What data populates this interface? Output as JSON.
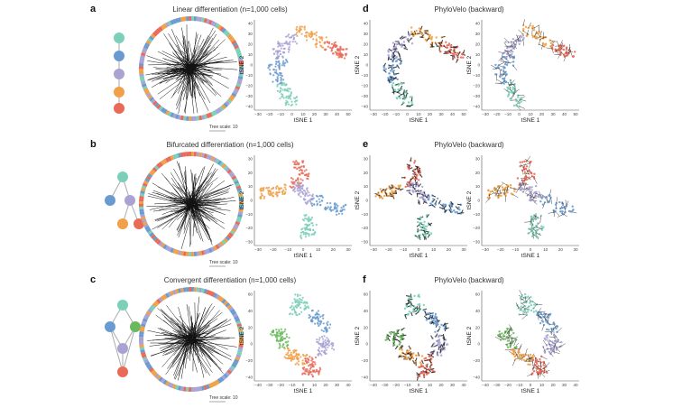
{
  "colors": {
    "teal": "#7ccfb8",
    "blue": "#6a9bd0",
    "lavender": "#a9a3d4",
    "orange": "#f0a048",
    "red": "#e86a58",
    "green": "#6bb85f",
    "arrow": "#1a1a1a",
    "ring": [
      "#7ccfb8",
      "#6a9bd0",
      "#a9a3d4",
      "#f0a048",
      "#e86a58"
    ]
  },
  "rows": [
    {
      "key": "linear",
      "title": "Linear differentiation (n=1,000 cells)",
      "letters": [
        "a",
        "d"
      ],
      "velo_title": "PhyloVelo (backward)",
      "tree_scale": "Tree scale: 10",
      "axis": {
        "xlabel": "tSNE 1",
        "ylabel": "tSNE 2"
      },
      "xticks": [
        "−30",
        "−20",
        "−10",
        "0",
        "10",
        "20",
        "30",
        "40",
        "50"
      ],
      "yticks": [
        "40",
        "30",
        "20",
        "10",
        "0",
        "−10",
        "−20",
        "−30",
        "−40"
      ],
      "lineage": {
        "nodes": [
          {
            "c": "teal"
          },
          {
            "c": "blue"
          },
          {
            "c": "lavender"
          },
          {
            "c": "orange"
          },
          {
            "c": "red"
          }
        ]
      }
    },
    {
      "key": "bifurcated",
      "title": "Bifurcated differentiation (n=1,000 cells)",
      "letters": [
        "b",
        "e"
      ],
      "velo_title": "PhyloVelo (backward)",
      "tree_scale": "Tree scale: 10",
      "axis": {
        "xlabel": "tSNE 1",
        "ylabel": "tSNE 2"
      },
      "xticks": [
        "−30",
        "−20",
        "−10",
        "0",
        "10",
        "20",
        "30"
      ],
      "yticks": [
        "30",
        "20",
        "10",
        "0",
        "−10",
        "−20",
        "−30"
      ],
      "lineage": {
        "nodes": [
          {
            "c": "teal"
          },
          {
            "c": "blue"
          },
          {
            "c": "lavender"
          },
          {
            "c": "orange"
          },
          {
            "c": "red"
          }
        ]
      }
    },
    {
      "key": "convergent",
      "title": "Convergent differentiation (n=1,000 cells)",
      "letters": [
        "c",
        "f"
      ],
      "velo_title": "PhyloVelo (backward)",
      "tree_scale": "Tree scale: 10",
      "axis": {
        "xlabel": "tSNE 1",
        "ylabel": "tSNE 2"
      },
      "xticks": [
        "−40",
        "−30",
        "−20",
        "−10",
        "0",
        "10",
        "20",
        "30",
        "40"
      ],
      "yticks": [
        "60",
        "40",
        "20",
        "0",
        "−20",
        "−40"
      ],
      "lineage": {
        "nodes": [
          {
            "c": "teal"
          },
          {
            "c": "blue"
          },
          {
            "c": "green"
          },
          {
            "c": "lavender"
          },
          {
            "c": "red"
          }
        ]
      }
    }
  ]
}
